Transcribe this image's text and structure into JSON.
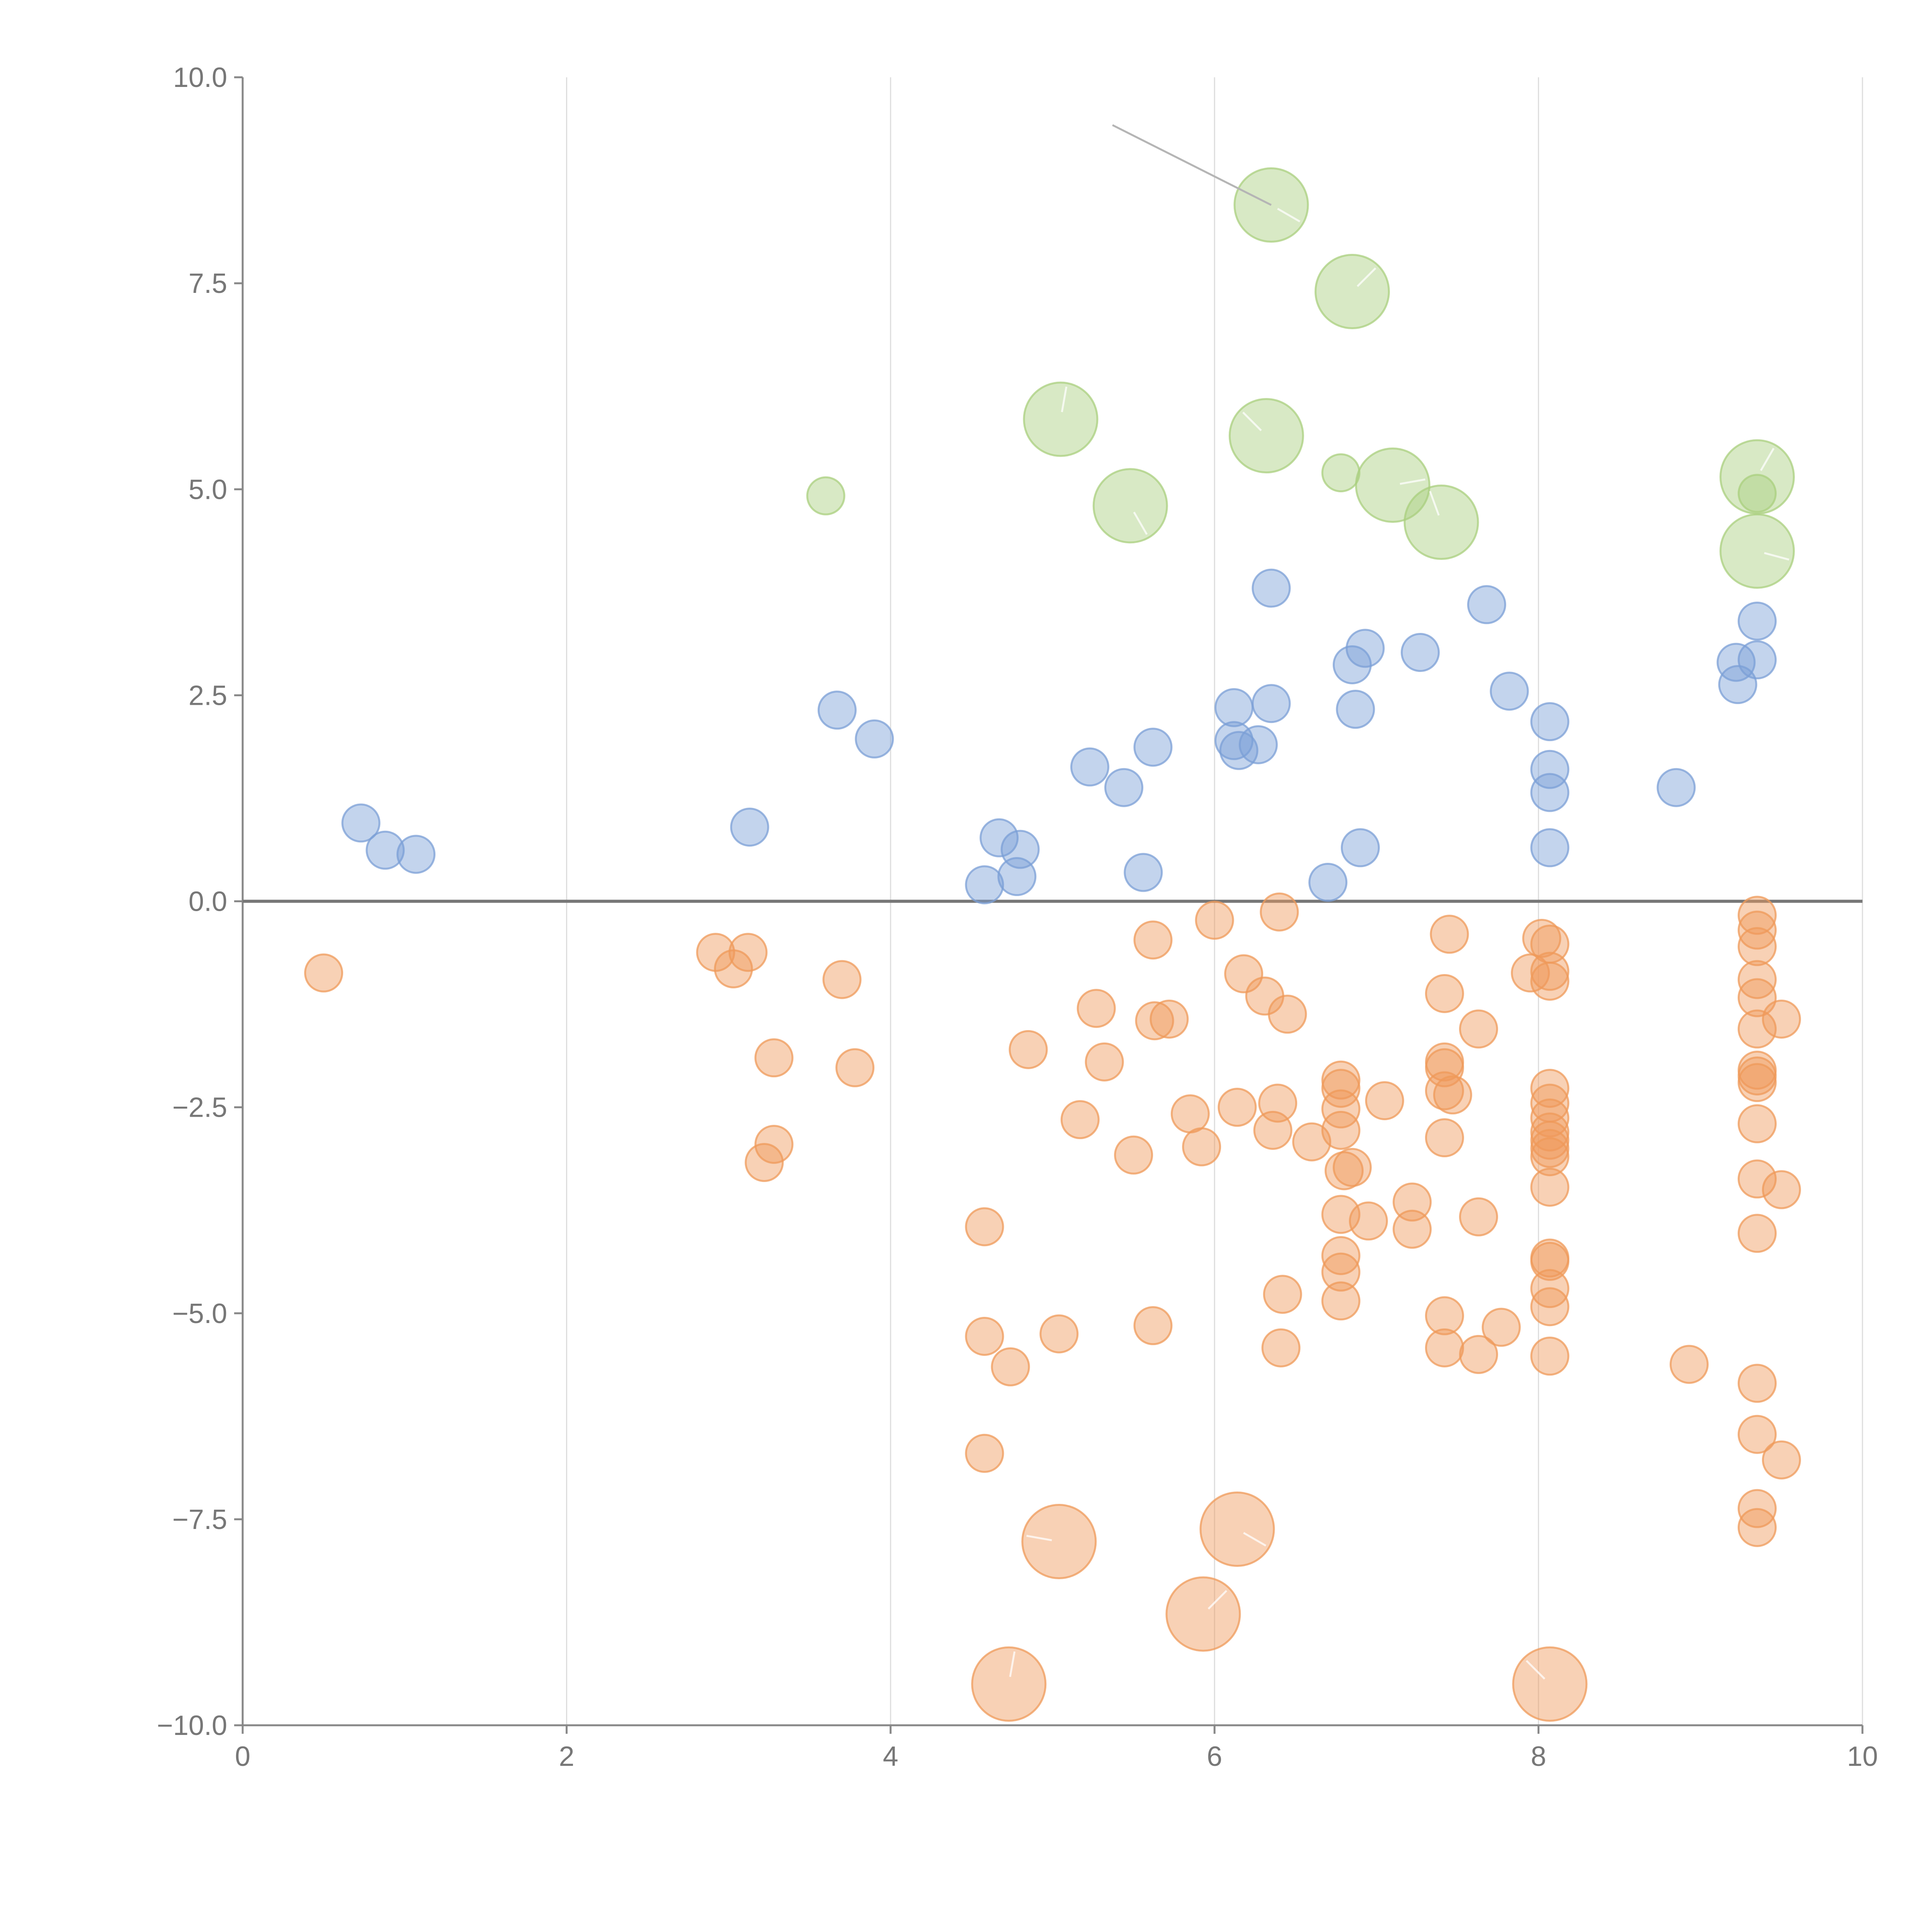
{
  "chart_data": {
    "type": "scatter",
    "title": "",
    "xlabel": "",
    "ylabel": "",
    "xlim": [
      0,
      10
    ],
    "ylim": [
      -10,
      10
    ],
    "x_ticks": [
      "0",
      "2",
      "4",
      "6",
      "8",
      "10"
    ],
    "y_ticks": [
      "−10.0",
      "−7.5",
      "−5.0",
      "−2.5",
      "0.0",
      "2.5",
      "5.0",
      "7.5",
      "10.0"
    ],
    "grid": "vertical lines at x ticks",
    "zero_line": true,
    "colors": {
      "green": "#a9cf7e",
      "blue": "#7b9fd6",
      "orange": "#ef9a5a"
    },
    "series": [
      {
        "color": "green",
        "points": [
          {
            "x": 6.35,
            "y": 8.45,
            "r": 2
          },
          {
            "x": 6.85,
            "y": 7.4,
            "r": 2
          },
          {
            "x": 5.05,
            "y": 5.85,
            "r": 2
          },
          {
            "x": 6.32,
            "y": 5.65,
            "r": 2
          },
          {
            "x": 5.48,
            "y": 4.8,
            "r": 2
          },
          {
            "x": 7.1,
            "y": 5.05,
            "r": 2
          },
          {
            "x": 7.4,
            "y": 4.6,
            "r": 2
          },
          {
            "x": 9.35,
            "y": 5.15,
            "r": 2
          },
          {
            "x": 9.35,
            "y": 4.25,
            "r": 2
          },
          {
            "x": 3.6,
            "y": 4.92,
            "r": 1
          },
          {
            "x": 6.78,
            "y": 5.2,
            "r": 1
          },
          {
            "x": 9.35,
            "y": 4.95,
            "r": 1
          }
        ]
      },
      {
        "color": "blue",
        "points": [
          {
            "x": 0.73,
            "y": 0.95,
            "r": 1
          },
          {
            "x": 0.88,
            "y": 0.62,
            "r": 1
          },
          {
            "x": 1.07,
            "y": 0.57,
            "r": 1
          },
          {
            "x": 3.13,
            "y": 0.9,
            "r": 1
          },
          {
            "x": 3.67,
            "y": 2.32,
            "r": 1
          },
          {
            "x": 3.9,
            "y": 1.97,
            "r": 1
          },
          {
            "x": 4.58,
            "y": 0.2,
            "r": 1
          },
          {
            "x": 4.67,
            "y": 0.77,
            "r": 1
          },
          {
            "x": 4.78,
            "y": 0.3,
            "r": 1
          },
          {
            "x": 4.8,
            "y": 0.63,
            "r": 1
          },
          {
            "x": 5.23,
            "y": 1.63,
            "r": 1
          },
          {
            "x": 5.44,
            "y": 1.38,
            "r": 1
          },
          {
            "x": 5.56,
            "y": 0.35,
            "r": 1
          },
          {
            "x": 5.62,
            "y": 1.87,
            "r": 1
          },
          {
            "x": 6.12,
            "y": 2.35,
            "r": 1
          },
          {
            "x": 6.12,
            "y": 1.95,
            "r": 1
          },
          {
            "x": 6.15,
            "y": 1.83,
            "r": 1
          },
          {
            "x": 6.27,
            "y": 1.9,
            "r": 1
          },
          {
            "x": 6.35,
            "y": 2.4,
            "r": 1
          },
          {
            "x": 6.35,
            "y": 3.8,
            "r": 1
          },
          {
            "x": 6.7,
            "y": 0.23,
            "r": 1
          },
          {
            "x": 6.85,
            "y": 2.87,
            "r": 1
          },
          {
            "x": 6.87,
            "y": 2.33,
            "r": 1
          },
          {
            "x": 6.9,
            "y": 0.65,
            "r": 1
          },
          {
            "x": 6.93,
            "y": 3.07,
            "r": 1
          },
          {
            "x": 7.27,
            "y": 3.02,
            "r": 1
          },
          {
            "x": 7.68,
            "y": 3.6,
            "r": 1
          },
          {
            "x": 7.82,
            "y": 2.55,
            "r": 1
          },
          {
            "x": 8.07,
            "y": 2.18,
            "r": 1
          },
          {
            "x": 8.07,
            "y": 1.6,
            "r": 1
          },
          {
            "x": 8.07,
            "y": 1.32,
            "r": 1
          },
          {
            "x": 8.07,
            "y": 0.65,
            "r": 1
          },
          {
            "x": 8.85,
            "y": 1.38,
            "r": 1
          },
          {
            "x": 9.22,
            "y": 2.9,
            "r": 1
          },
          {
            "x": 9.23,
            "y": 2.63,
            "r": 1
          },
          {
            "x": 9.35,
            "y": 3.4,
            "r": 1
          },
          {
            "x": 9.35,
            "y": 2.93,
            "r": 1
          }
        ]
      },
      {
        "color": "orange",
        "points": [
          {
            "x": 0.5,
            "y": -0.87,
            "r": 1
          },
          {
            "x": 2.92,
            "y": -0.62,
            "r": 1
          },
          {
            "x": 3.03,
            "y": -0.82,
            "r": 1
          },
          {
            "x": 3.12,
            "y": -0.62,
            "r": 1
          },
          {
            "x": 3.28,
            "y": -1.9,
            "r": 1
          },
          {
            "x": 3.28,
            "y": -2.95,
            "r": 1
          },
          {
            "x": 3.22,
            "y": -3.17,
            "r": 1
          },
          {
            "x": 3.7,
            "y": -0.95,
            "r": 1
          },
          {
            "x": 3.78,
            "y": -2.02,
            "r": 1
          },
          {
            "x": 4.58,
            "y": -3.95,
            "r": 1
          },
          {
            "x": 4.58,
            "y": -5.28,
            "r": 1
          },
          {
            "x": 4.74,
            "y": -5.65,
            "r": 1
          },
          {
            "x": 4.58,
            "y": -6.7,
            "r": 1
          },
          {
            "x": 4.85,
            "y": -1.8,
            "r": 1
          },
          {
            "x": 5.04,
            "y": -5.25,
            "r": 1
          },
          {
            "x": 5.17,
            "y": -2.65,
            "r": 1
          },
          {
            "x": 5.27,
            "y": -1.3,
            "r": 1
          },
          {
            "x": 5.32,
            "y": -1.95,
            "r": 1
          },
          {
            "x": 5.5,
            "y": -3.08,
            "r": 1
          },
          {
            "x": 5.62,
            "y": -0.47,
            "r": 1
          },
          {
            "x": 5.63,
            "y": -1.45,
            "r": 1
          },
          {
            "x": 5.72,
            "y": -1.43,
            "r": 1
          },
          {
            "x": 5.62,
            "y": -5.15,
            "r": 1
          },
          {
            "x": 5.85,
            "y": -2.58,
            "r": 1
          },
          {
            "x": 5.92,
            "y": -2.98,
            "r": 1
          },
          {
            "x": 6.0,
            "y": -0.23,
            "r": 1
          },
          {
            "x": 6.14,
            "y": -2.5,
            "r": 1
          },
          {
            "x": 6.18,
            "y": -0.88,
            "r": 1
          },
          {
            "x": 6.31,
            "y": -1.15,
            "r": 1
          },
          {
            "x": 6.36,
            "y": -2.78,
            "r": 1
          },
          {
            "x": 6.39,
            "y": -2.45,
            "r": 1
          },
          {
            "x": 6.4,
            "y": -0.13,
            "r": 1
          },
          {
            "x": 6.45,
            "y": -1.37,
            "r": 1
          },
          {
            "x": 6.42,
            "y": -4.77,
            "r": 1
          },
          {
            "x": 6.41,
            "y": -5.42,
            "r": 1
          },
          {
            "x": 6.6,
            "y": -2.92,
            "r": 1
          },
          {
            "x": 6.78,
            "y": -2.17,
            "r": 1
          },
          {
            "x": 6.78,
            "y": -2.27,
            "r": 1
          },
          {
            "x": 6.78,
            "y": -2.52,
            "r": 1
          },
          {
            "x": 6.78,
            "y": -2.78,
            "r": 1
          },
          {
            "x": 6.8,
            "y": -3.27,
            "r": 1
          },
          {
            "x": 6.85,
            "y": -3.23,
            "r": 1
          },
          {
            "x": 6.78,
            "y": -3.8,
            "r": 1
          },
          {
            "x": 6.78,
            "y": -4.3,
            "r": 1
          },
          {
            "x": 6.78,
            "y": -4.5,
            "r": 1
          },
          {
            "x": 6.78,
            "y": -4.85,
            "r": 1
          },
          {
            "x": 6.95,
            "y": -3.88,
            "r": 1
          },
          {
            "x": 7.05,
            "y": -2.42,
            "r": 1
          },
          {
            "x": 7.22,
            "y": -3.65,
            "r": 1
          },
          {
            "x": 7.22,
            "y": -3.98,
            "r": 1
          },
          {
            "x": 7.45,
            "y": -0.4,
            "r": 1
          },
          {
            "x": 7.42,
            "y": -1.12,
            "r": 1
          },
          {
            "x": 7.42,
            "y": -1.95,
            "r": 1
          },
          {
            "x": 7.42,
            "y": -2.02,
            "r": 1
          },
          {
            "x": 7.42,
            "y": -2.3,
            "r": 1
          },
          {
            "x": 7.47,
            "y": -2.35,
            "r": 1
          },
          {
            "x": 7.42,
            "y": -2.87,
            "r": 1
          },
          {
            "x": 7.42,
            "y": -5.03,
            "r": 1
          },
          {
            "x": 7.42,
            "y": -5.42,
            "r": 1
          },
          {
            "x": 7.63,
            "y": -1.55,
            "r": 1
          },
          {
            "x": 7.63,
            "y": -3.83,
            "r": 1
          },
          {
            "x": 7.63,
            "y": -5.5,
            "r": 1
          },
          {
            "x": 7.77,
            "y": -5.17,
            "r": 1
          },
          {
            "x": 7.95,
            "y": -0.87,
            "r": 1
          },
          {
            "x": 8.02,
            "y": -0.45,
            "r": 1
          },
          {
            "x": 8.07,
            "y": -0.52,
            "r": 1
          },
          {
            "x": 8.07,
            "y": -0.85,
            "r": 1
          },
          {
            "x": 8.07,
            "y": -0.97,
            "r": 1
          },
          {
            "x": 8.07,
            "y": -2.27,
            "r": 1
          },
          {
            "x": 8.07,
            "y": -2.45,
            "r": 1
          },
          {
            "x": 8.07,
            "y": -2.63,
            "r": 1
          },
          {
            "x": 8.07,
            "y": -2.8,
            "r": 1
          },
          {
            "x": 8.07,
            "y": -2.9,
            "r": 1
          },
          {
            "x": 8.07,
            "y": -3.0,
            "r": 1
          },
          {
            "x": 8.07,
            "y": -3.1,
            "r": 1
          },
          {
            "x": 8.07,
            "y": -3.47,
            "r": 1
          },
          {
            "x": 8.07,
            "y": -4.33,
            "r": 1
          },
          {
            "x": 8.07,
            "y": -4.37,
            "r": 1
          },
          {
            "x": 8.07,
            "y": -4.7,
            "r": 1
          },
          {
            "x": 8.07,
            "y": -4.92,
            "r": 1
          },
          {
            "x": 8.07,
            "y": -5.52,
            "r": 1
          },
          {
            "x": 8.93,
            "y": -5.62,
            "r": 1
          },
          {
            "x": 9.35,
            "y": -0.17,
            "r": 1
          },
          {
            "x": 9.35,
            "y": -0.35,
            "r": 1
          },
          {
            "x": 9.35,
            "y": -0.55,
            "r": 1
          },
          {
            "x": 9.35,
            "y": -0.95,
            "r": 1
          },
          {
            "x": 9.35,
            "y": -1.17,
            "r": 1
          },
          {
            "x": 9.35,
            "y": -1.55,
            "r": 1
          },
          {
            "x": 9.5,
            "y": -1.43,
            "r": 1
          },
          {
            "x": 9.35,
            "y": -2.05,
            "r": 1
          },
          {
            "x": 9.35,
            "y": -2.12,
            "r": 1
          },
          {
            "x": 9.35,
            "y": -2.2,
            "r": 1
          },
          {
            "x": 9.35,
            "y": -2.7,
            "r": 1
          },
          {
            "x": 9.35,
            "y": -3.37,
            "r": 1
          },
          {
            "x": 9.5,
            "y": -3.5,
            "r": 1
          },
          {
            "x": 9.35,
            "y": -4.03,
            "r": 1
          },
          {
            "x": 9.35,
            "y": -5.85,
            "r": 1
          },
          {
            "x": 9.35,
            "y": -6.47,
            "r": 1
          },
          {
            "x": 9.5,
            "y": -6.78,
            "r": 1
          },
          {
            "x": 9.35,
            "y": -7.37,
            "r": 1
          },
          {
            "x": 9.35,
            "y": -7.6,
            "r": 1
          },
          {
            "x": 5.04,
            "y": -7.77,
            "r": 2
          },
          {
            "x": 6.14,
            "y": -7.62,
            "r": 2
          },
          {
            "x": 5.93,
            "y": -8.65,
            "r": 2
          },
          {
            "x": 4.73,
            "y": -9.5,
            "r": 2
          },
          {
            "x": 8.07,
            "y": -9.5,
            "r": 2
          }
        ]
      }
    ]
  }
}
